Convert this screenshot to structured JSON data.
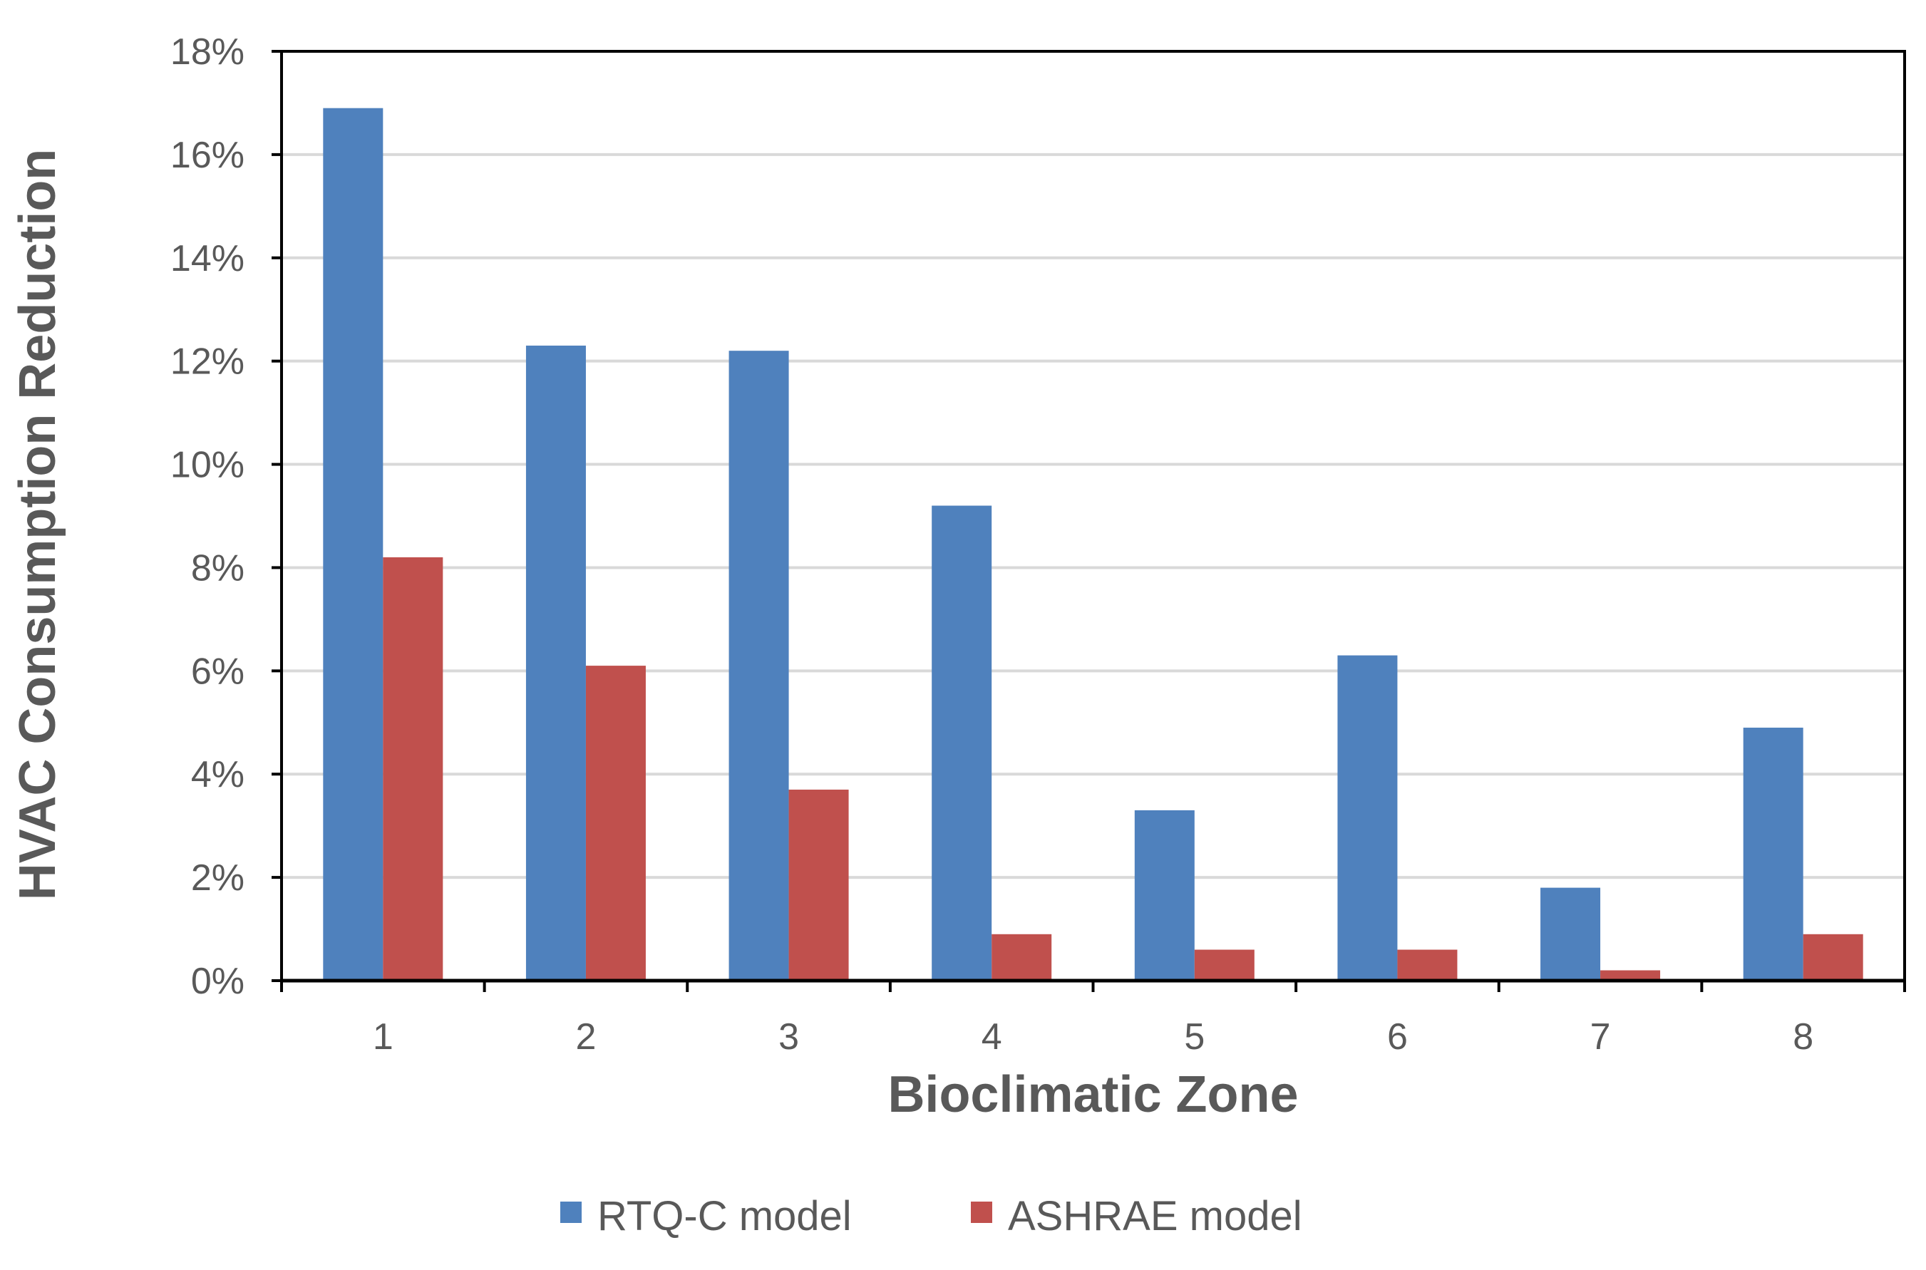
{
  "chart_data": {
    "type": "bar",
    "title": "",
    "xlabel": "Bioclimatic Zone",
    "ylabel": "HVAC Consumption Reduction",
    "categories": [
      "1",
      "2",
      "3",
      "4",
      "5",
      "6",
      "7",
      "8"
    ],
    "series": [
      {
        "name": "RTQ-C model",
        "color": "#4F81BD",
        "values": [
          16.9,
          12.3,
          12.2,
          9.2,
          3.3,
          6.3,
          1.8,
          4.9
        ]
      },
      {
        "name": "ASHRAE model",
        "color": "#C0504D",
        "values": [
          8.2,
          6.1,
          3.7,
          0.9,
          0.6,
          0.6,
          0.2,
          0.9
        ]
      }
    ],
    "ylim": [
      0,
      18
    ],
    "yticks": [
      0,
      2,
      4,
      6,
      8,
      10,
      12,
      14,
      16,
      18
    ],
    "ytick_labels": [
      "0%",
      "2%",
      "4%",
      "6%",
      "8%",
      "10%",
      "12%",
      "14%",
      "16%",
      "18%"
    ],
    "grid": true,
    "legend_position": "bottom"
  }
}
